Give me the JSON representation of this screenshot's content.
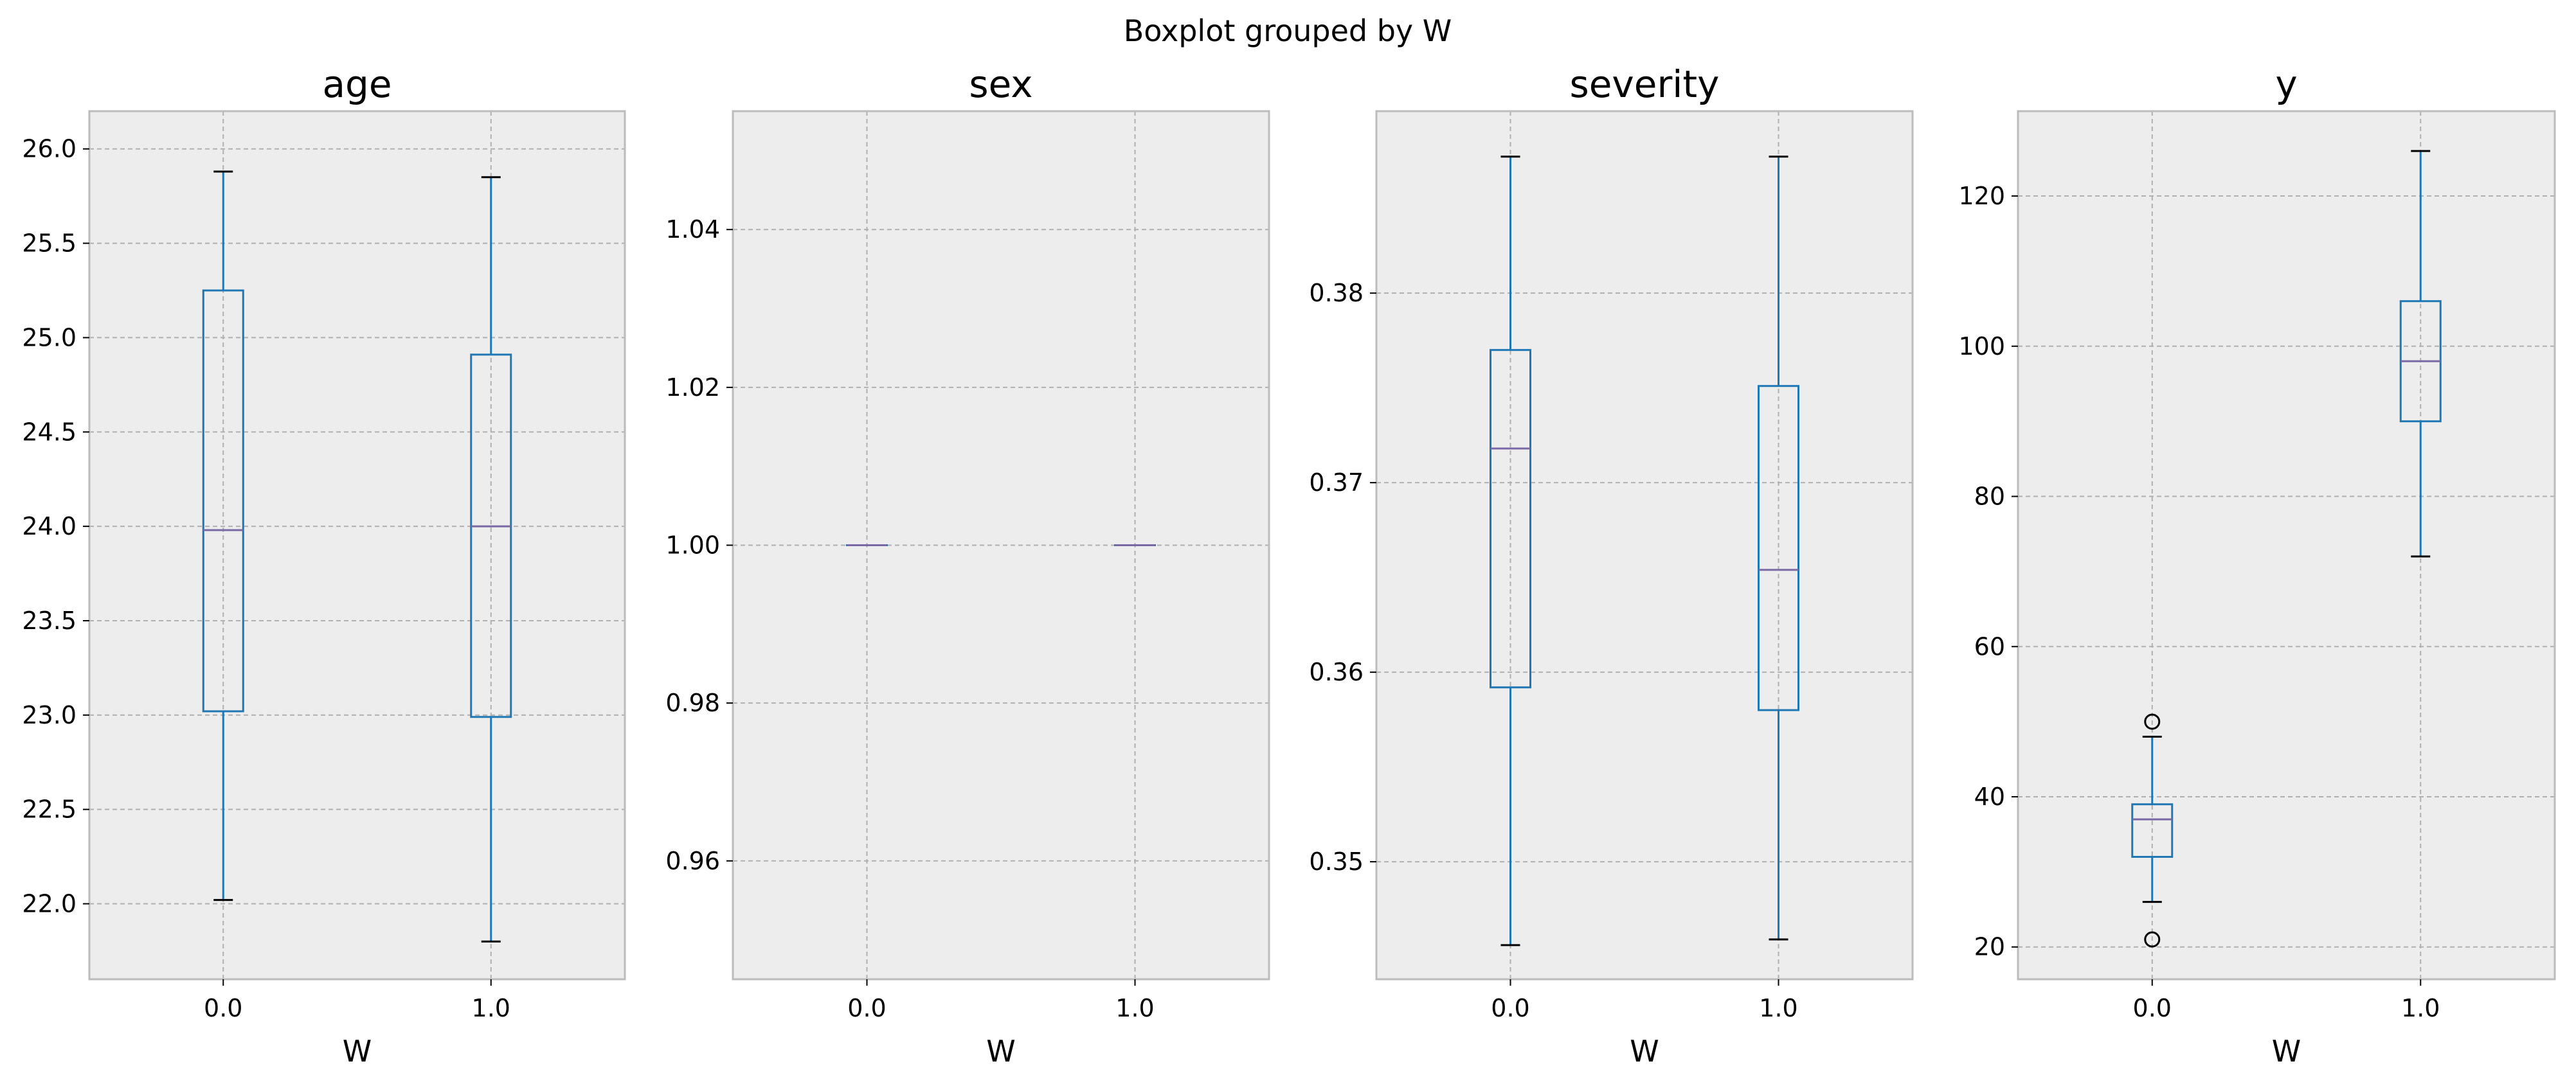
{
  "suptitle": "Boxplot grouped by W",
  "colors": {
    "axes_bg": "#ededed",
    "grid": "#b0b0b0",
    "box": "#1f77b4",
    "median": "#7a68a6",
    "frame": "#bcbcbc"
  },
  "chart_data": [
    {
      "type": "boxplot",
      "title": "age",
      "xlabel": "W",
      "categories": [
        "0.0",
        "1.0"
      ],
      "ylim": [
        21.6,
        26.2
      ],
      "yticks": [
        "22.0",
        "22.5",
        "23.0",
        "23.5",
        "24.0",
        "24.5",
        "25.0",
        "25.5",
        "26.0"
      ],
      "grid": true,
      "boxes": [
        {
          "whislo": 22.02,
          "q1": 23.02,
          "med": 23.98,
          "q3": 25.25,
          "whishi": 25.88,
          "fliers": []
        },
        {
          "whislo": 21.8,
          "q1": 22.99,
          "med": 24.0,
          "q3": 24.91,
          "whishi": 25.85,
          "fliers": []
        }
      ]
    },
    {
      "type": "boxplot",
      "title": "sex",
      "xlabel": "W",
      "categories": [
        "0.0",
        "1.0"
      ],
      "ylim": [
        0.945,
        1.055
      ],
      "yticks": [
        "0.96",
        "0.98",
        "1.00",
        "1.02",
        "1.04"
      ],
      "grid": true,
      "boxes": [
        {
          "whislo": 1.0,
          "q1": 1.0,
          "med": 1.0,
          "q3": 1.0,
          "whishi": 1.0,
          "fliers": []
        },
        {
          "whislo": 1.0,
          "q1": 1.0,
          "med": 1.0,
          "q3": 1.0,
          "whishi": 1.0,
          "fliers": []
        }
      ]
    },
    {
      "type": "boxplot",
      "title": "severity",
      "xlabel": "W",
      "categories": [
        "0.0",
        "1.0"
      ],
      "ylim": [
        0.3438,
        0.3896
      ],
      "yticks": [
        "0.35",
        "0.36",
        "0.37",
        "0.38"
      ],
      "grid": true,
      "boxes": [
        {
          "whislo": 0.3456,
          "q1": 0.3592,
          "med": 0.3718,
          "q3": 0.377,
          "whishi": 0.3872,
          "fliers": []
        },
        {
          "whislo": 0.3459,
          "q1": 0.358,
          "med": 0.3654,
          "q3": 0.3751,
          "whishi": 0.3872,
          "fliers": []
        }
      ]
    },
    {
      "type": "boxplot",
      "title": "y",
      "xlabel": "W",
      "categories": [
        "0.0",
        "1.0"
      ],
      "ylim": [
        15.7,
        131.3
      ],
      "yticks": [
        "20",
        "40",
        "60",
        "80",
        "100",
        "120"
      ],
      "grid": true,
      "boxes": [
        {
          "whislo": 26,
          "q1": 32,
          "med": 37,
          "q3": 39,
          "whishi": 48,
          "fliers": [
            50,
            21
          ]
        },
        {
          "whislo": 72,
          "q1": 90,
          "med": 98,
          "q3": 106,
          "whishi": 126,
          "fliers": []
        }
      ]
    }
  ]
}
